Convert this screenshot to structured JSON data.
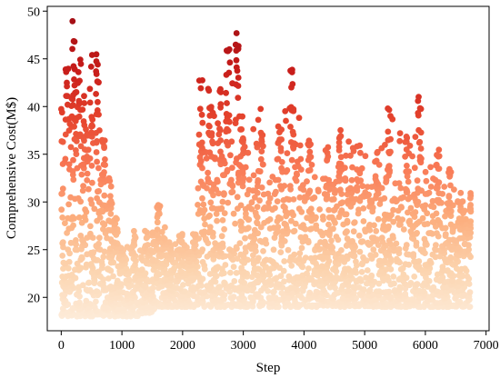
{
  "chart_data": {
    "type": "scatter",
    "title": "",
    "xlabel": "Step",
    "ylabel": "Comprehensive Cost(M$)",
    "xlim": [
      -230,
      7050
    ],
    "ylim": [
      16.5,
      50.5
    ],
    "xticks": [
      0,
      1000,
      2000,
      3000,
      4000,
      5000,
      6000,
      7000
    ],
    "yticks": [
      20,
      25,
      30,
      35,
      40,
      45,
      50
    ],
    "grid": false,
    "legend": "none",
    "colormap": [
      "#fdebd8",
      "#fcd3ad",
      "#fcae7e",
      "#f97b57",
      "#e6452e",
      "#c81d1a",
      "#a50f15"
    ],
    "color_range": [
      18,
      49
    ],
    "density_profile": [
      {
        "x": 0,
        "y_max": 40,
        "y_min": 18
      },
      {
        "x": 100,
        "y_max": 44,
        "y_min": 18
      },
      {
        "x": 200,
        "y_max": 49,
        "y_min": 18
      },
      {
        "x": 300,
        "y_max": 45,
        "y_min": 18
      },
      {
        "x": 400,
        "y_max": 42,
        "y_min": 18
      },
      {
        "x": 500,
        "y_max": 46,
        "y_min": 18
      },
      {
        "x": 600,
        "y_max": 46,
        "y_min": 18
      },
      {
        "x": 700,
        "y_max": 39,
        "y_min": 18
      },
      {
        "x": 800,
        "y_max": 33,
        "y_min": 18
      },
      {
        "x": 900,
        "y_max": 29,
        "y_min": 18
      },
      {
        "x": 1000,
        "y_max": 26,
        "y_min": 18
      },
      {
        "x": 1200,
        "y_max": 27,
        "y_min": 18
      },
      {
        "x": 1400,
        "y_max": 27,
        "y_min": 18
      },
      {
        "x": 1600,
        "y_max": 30,
        "y_min": 19
      },
      {
        "x": 1800,
        "y_max": 26,
        "y_min": 19
      },
      {
        "x": 2000,
        "y_max": 27,
        "y_min": 19
      },
      {
        "x": 2200,
        "y_max": 27,
        "y_min": 19
      },
      {
        "x": 2300,
        "y_max": 43,
        "y_min": 19
      },
      {
        "x": 2450,
        "y_max": 43,
        "y_min": 19
      },
      {
        "x": 2600,
        "y_max": 42,
        "y_min": 19
      },
      {
        "x": 2750,
        "y_max": 46,
        "y_min": 19
      },
      {
        "x": 2900,
        "y_max": 48,
        "y_min": 19
      },
      {
        "x": 3000,
        "y_max": 39,
        "y_min": 19
      },
      {
        "x": 3300,
        "y_max": 40,
        "y_min": 19
      },
      {
        "x": 3600,
        "y_max": 38,
        "y_min": 19
      },
      {
        "x": 3800,
        "y_max": 44,
        "y_min": 19
      },
      {
        "x": 4100,
        "y_max": 37,
        "y_min": 19
      },
      {
        "x": 4400,
        "y_max": 36,
        "y_min": 19
      },
      {
        "x": 4600,
        "y_max": 39,
        "y_min": 19
      },
      {
        "x": 4900,
        "y_max": 36,
        "y_min": 19
      },
      {
        "x": 5200,
        "y_max": 36,
        "y_min": 19
      },
      {
        "x": 5400,
        "y_max": 40,
        "y_min": 19
      },
      {
        "x": 5700,
        "y_max": 37,
        "y_min": 19
      },
      {
        "x": 5900,
        "y_max": 42,
        "y_min": 19
      },
      {
        "x": 6200,
        "y_max": 36,
        "y_min": 19
      },
      {
        "x": 6400,
        "y_max": 34,
        "y_min": 19
      },
      {
        "x": 6600,
        "y_max": 31,
        "y_min": 19
      },
      {
        "x": 6750,
        "y_max": 31,
        "y_min": 19
      }
    ],
    "x_max_step": 6750,
    "point_count": 2600
  }
}
